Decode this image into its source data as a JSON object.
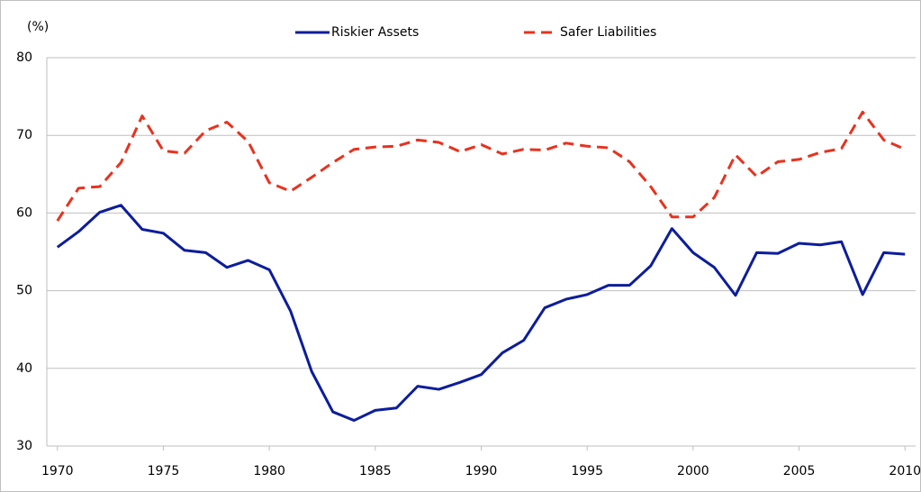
{
  "chart_data": {
    "type": "line",
    "y_axis_label": "(%)",
    "x": [
      1970,
      1971,
      1972,
      1973,
      1974,
      1975,
      1976,
      1977,
      1978,
      1979,
      1980,
      1981,
      1982,
      1983,
      1984,
      1985,
      1986,
      1987,
      1988,
      1989,
      1990,
      1991,
      1992,
      1993,
      1994,
      1995,
      1996,
      1997,
      1998,
      1999,
      2000,
      2001,
      2002,
      2003,
      2004,
      2005,
      2006,
      2007,
      2008,
      2009,
      2010
    ],
    "series": [
      {
        "name": "Riskier Assets",
        "color": "#0c1d9c",
        "dashed": false,
        "values": [
          55.6,
          57.6,
          60.1,
          61.0,
          57.9,
          57.4,
          55.2,
          54.9,
          53.0,
          53.9,
          52.7,
          47.4,
          39.6,
          34.4,
          33.3,
          34.6,
          34.9,
          37.7,
          37.3,
          38.2,
          39.2,
          42.0,
          43.6,
          47.8,
          48.9,
          49.5,
          50.7,
          50.7,
          53.2,
          58.0,
          54.9,
          53.0,
          49.4,
          54.9,
          54.8,
          56.1,
          55.9,
          56.3,
          49.5,
          54.9,
          54.7
        ]
      },
      {
        "name": "Safer Liabilities",
        "color": "#e8321e",
        "dashed": true,
        "values": [
          59.0,
          63.2,
          63.4,
          66.5,
          72.5,
          68.0,
          67.7,
          70.6,
          71.7,
          69.2,
          63.9,
          62.8,
          64.6,
          66.5,
          68.2,
          68.5,
          68.6,
          69.4,
          69.1,
          67.9,
          68.8,
          67.6,
          68.2,
          68.1,
          69.0,
          68.6,
          68.4,
          66.6,
          63.4,
          59.5,
          59.5,
          62.0,
          67.5,
          64.7,
          66.6,
          66.9,
          67.8,
          68.3,
          73.0,
          69.4,
          68.2
        ]
      }
    ],
    "xlim": [
      1969.5,
      2010.5
    ],
    "xticks": [
      1970,
      1975,
      1980,
      1985,
      1990,
      1995,
      2000,
      2005,
      2010
    ],
    "ylim": [
      30,
      80
    ],
    "yticks": [
      30,
      40,
      50,
      60,
      70,
      80
    ],
    "grid": true,
    "legend": "top"
  }
}
